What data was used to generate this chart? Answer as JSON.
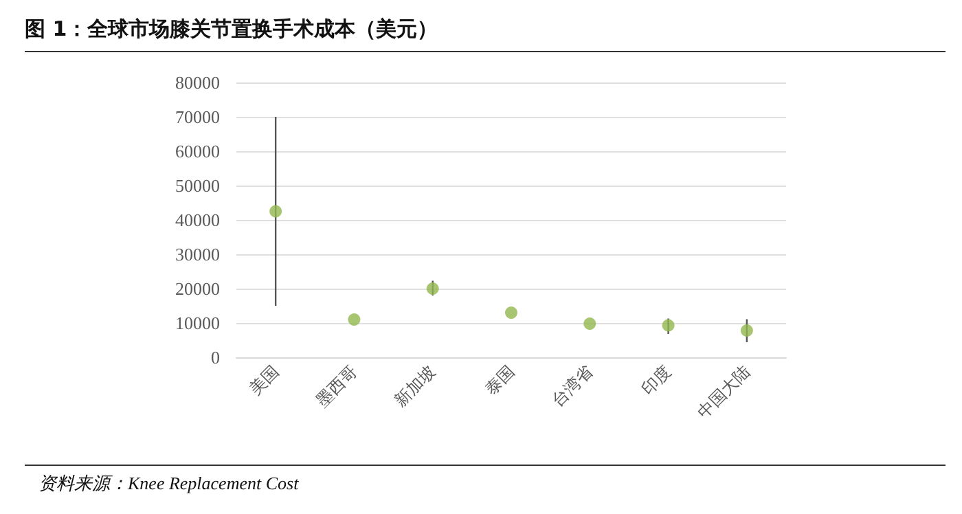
{
  "chart_data": {
    "type": "scatter",
    "title": "图 1：全球市场膝关节置换手术成本（美元）",
    "categories": [
      "美国",
      "墨西哥",
      "新加坡",
      "泰国",
      "台湾省",
      "印度",
      "中国大陆"
    ],
    "values": [
      42500,
      11000,
      20000,
      13000,
      9800,
      9300,
      7800
    ],
    "errors": [
      [
        15000,
        70000
      ],
      null,
      [
        18000,
        22300
      ],
      null,
      null,
      [
        6800,
        11300
      ],
      [
        4400,
        11100
      ]
    ],
    "color": "#92b84d",
    "marker": "circle",
    "ylim": [
      0,
      80000
    ],
    "yticks": [
      0,
      10000,
      20000,
      30000,
      40000,
      50000,
      60000,
      70000,
      80000
    ],
    "grid": "y",
    "annotations": [
      "资料来源：Knee Replacement Cost"
    ]
  }
}
